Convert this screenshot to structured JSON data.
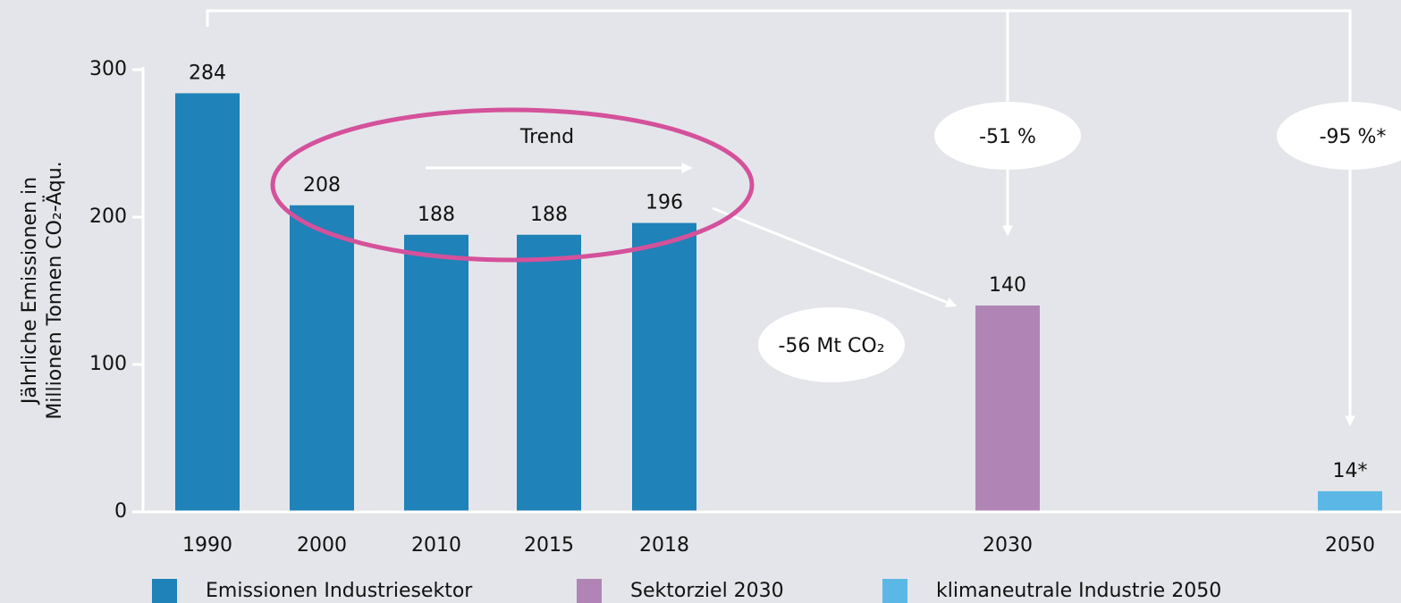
{
  "chart_data": {
    "type": "bar",
    "y_label": [
      "Jährliche Emissionen in",
      "Millionen Tonnen CO₂-Äqu."
    ],
    "categories": [
      "1990",
      "2000",
      "2010",
      "2015",
      "2018",
      "2030",
      "2050"
    ],
    "series": [
      {
        "name": "Emissionen Industriesektor",
        "color": "#1f82b8",
        "values": [
          284,
          208,
          188,
          188,
          196,
          null,
          null
        ]
      },
      {
        "name": "Sektorziel 2030",
        "color": "#b085b5",
        "values": [
          null,
          null,
          null,
          null,
          null,
          140,
          null
        ]
      },
      {
        "name": "klimaneutrale Industrie 2050",
        "color": "#5bb8e6",
        "values": [
          null,
          null,
          null,
          null,
          null,
          null,
          14
        ],
        "value_labels": [
          null,
          null,
          null,
          null,
          null,
          null,
          "14*"
        ]
      }
    ],
    "ylim": [
      0,
      300
    ],
    "yticks": [
      0,
      100,
      200,
      300
    ],
    "annotations": {
      "trend": "Trend",
      "target_2030": "-51 %",
      "target_2050": "-95 %*",
      "gap": "-56 Mt CO₂"
    }
  }
}
